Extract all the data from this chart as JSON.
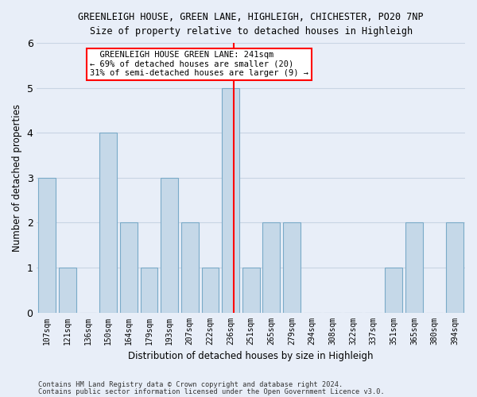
{
  "title_line1": "GREENLEIGH HOUSE, GREEN LANE, HIGHLEIGH, CHICHESTER, PO20 7NP",
  "title_line2": "Size of property relative to detached houses in Highleigh",
  "xlabel": "Distribution of detached houses by size in Highleigh",
  "ylabel": "Number of detached properties",
  "categories": [
    "107sqm",
    "121sqm",
    "136sqm",
    "150sqm",
    "164sqm",
    "179sqm",
    "193sqm",
    "207sqm",
    "222sqm",
    "236sqm",
    "251sqm",
    "265sqm",
    "279sqm",
    "294sqm",
    "308sqm",
    "322sqm",
    "337sqm",
    "351sqm",
    "365sqm",
    "380sqm",
    "394sqm"
  ],
  "values": [
    3,
    1,
    0,
    4,
    2,
    1,
    3,
    2,
    1,
    5,
    1,
    2,
    2,
    0,
    0,
    0,
    0,
    1,
    2,
    0,
    2
  ],
  "bar_color": "#c5d8e8",
  "bar_edge_color": "#7aaac8",
  "highlight_index": 9,
  "annotation_line1": "  GREENLEIGH HOUSE GREEN LANE: 241sqm",
  "annotation_line2": "← 69% of detached houses are smaller (20)",
  "annotation_line3": "31% of semi-detached houses are larger (9) →",
  "annotation_box_color": "white",
  "annotation_box_edge": "red",
  "red_line_color": "red",
  "grid_color": "#c8d4e4",
  "background_color": "#e8eef8",
  "ylim": [
    0,
    6
  ],
  "yticks": [
    0,
    1,
    2,
    3,
    4,
    5,
    6
  ],
  "footnote1": "Contains HM Land Registry data © Crown copyright and database right 2024.",
  "footnote2": "Contains public sector information licensed under the Open Government Licence v3.0."
}
